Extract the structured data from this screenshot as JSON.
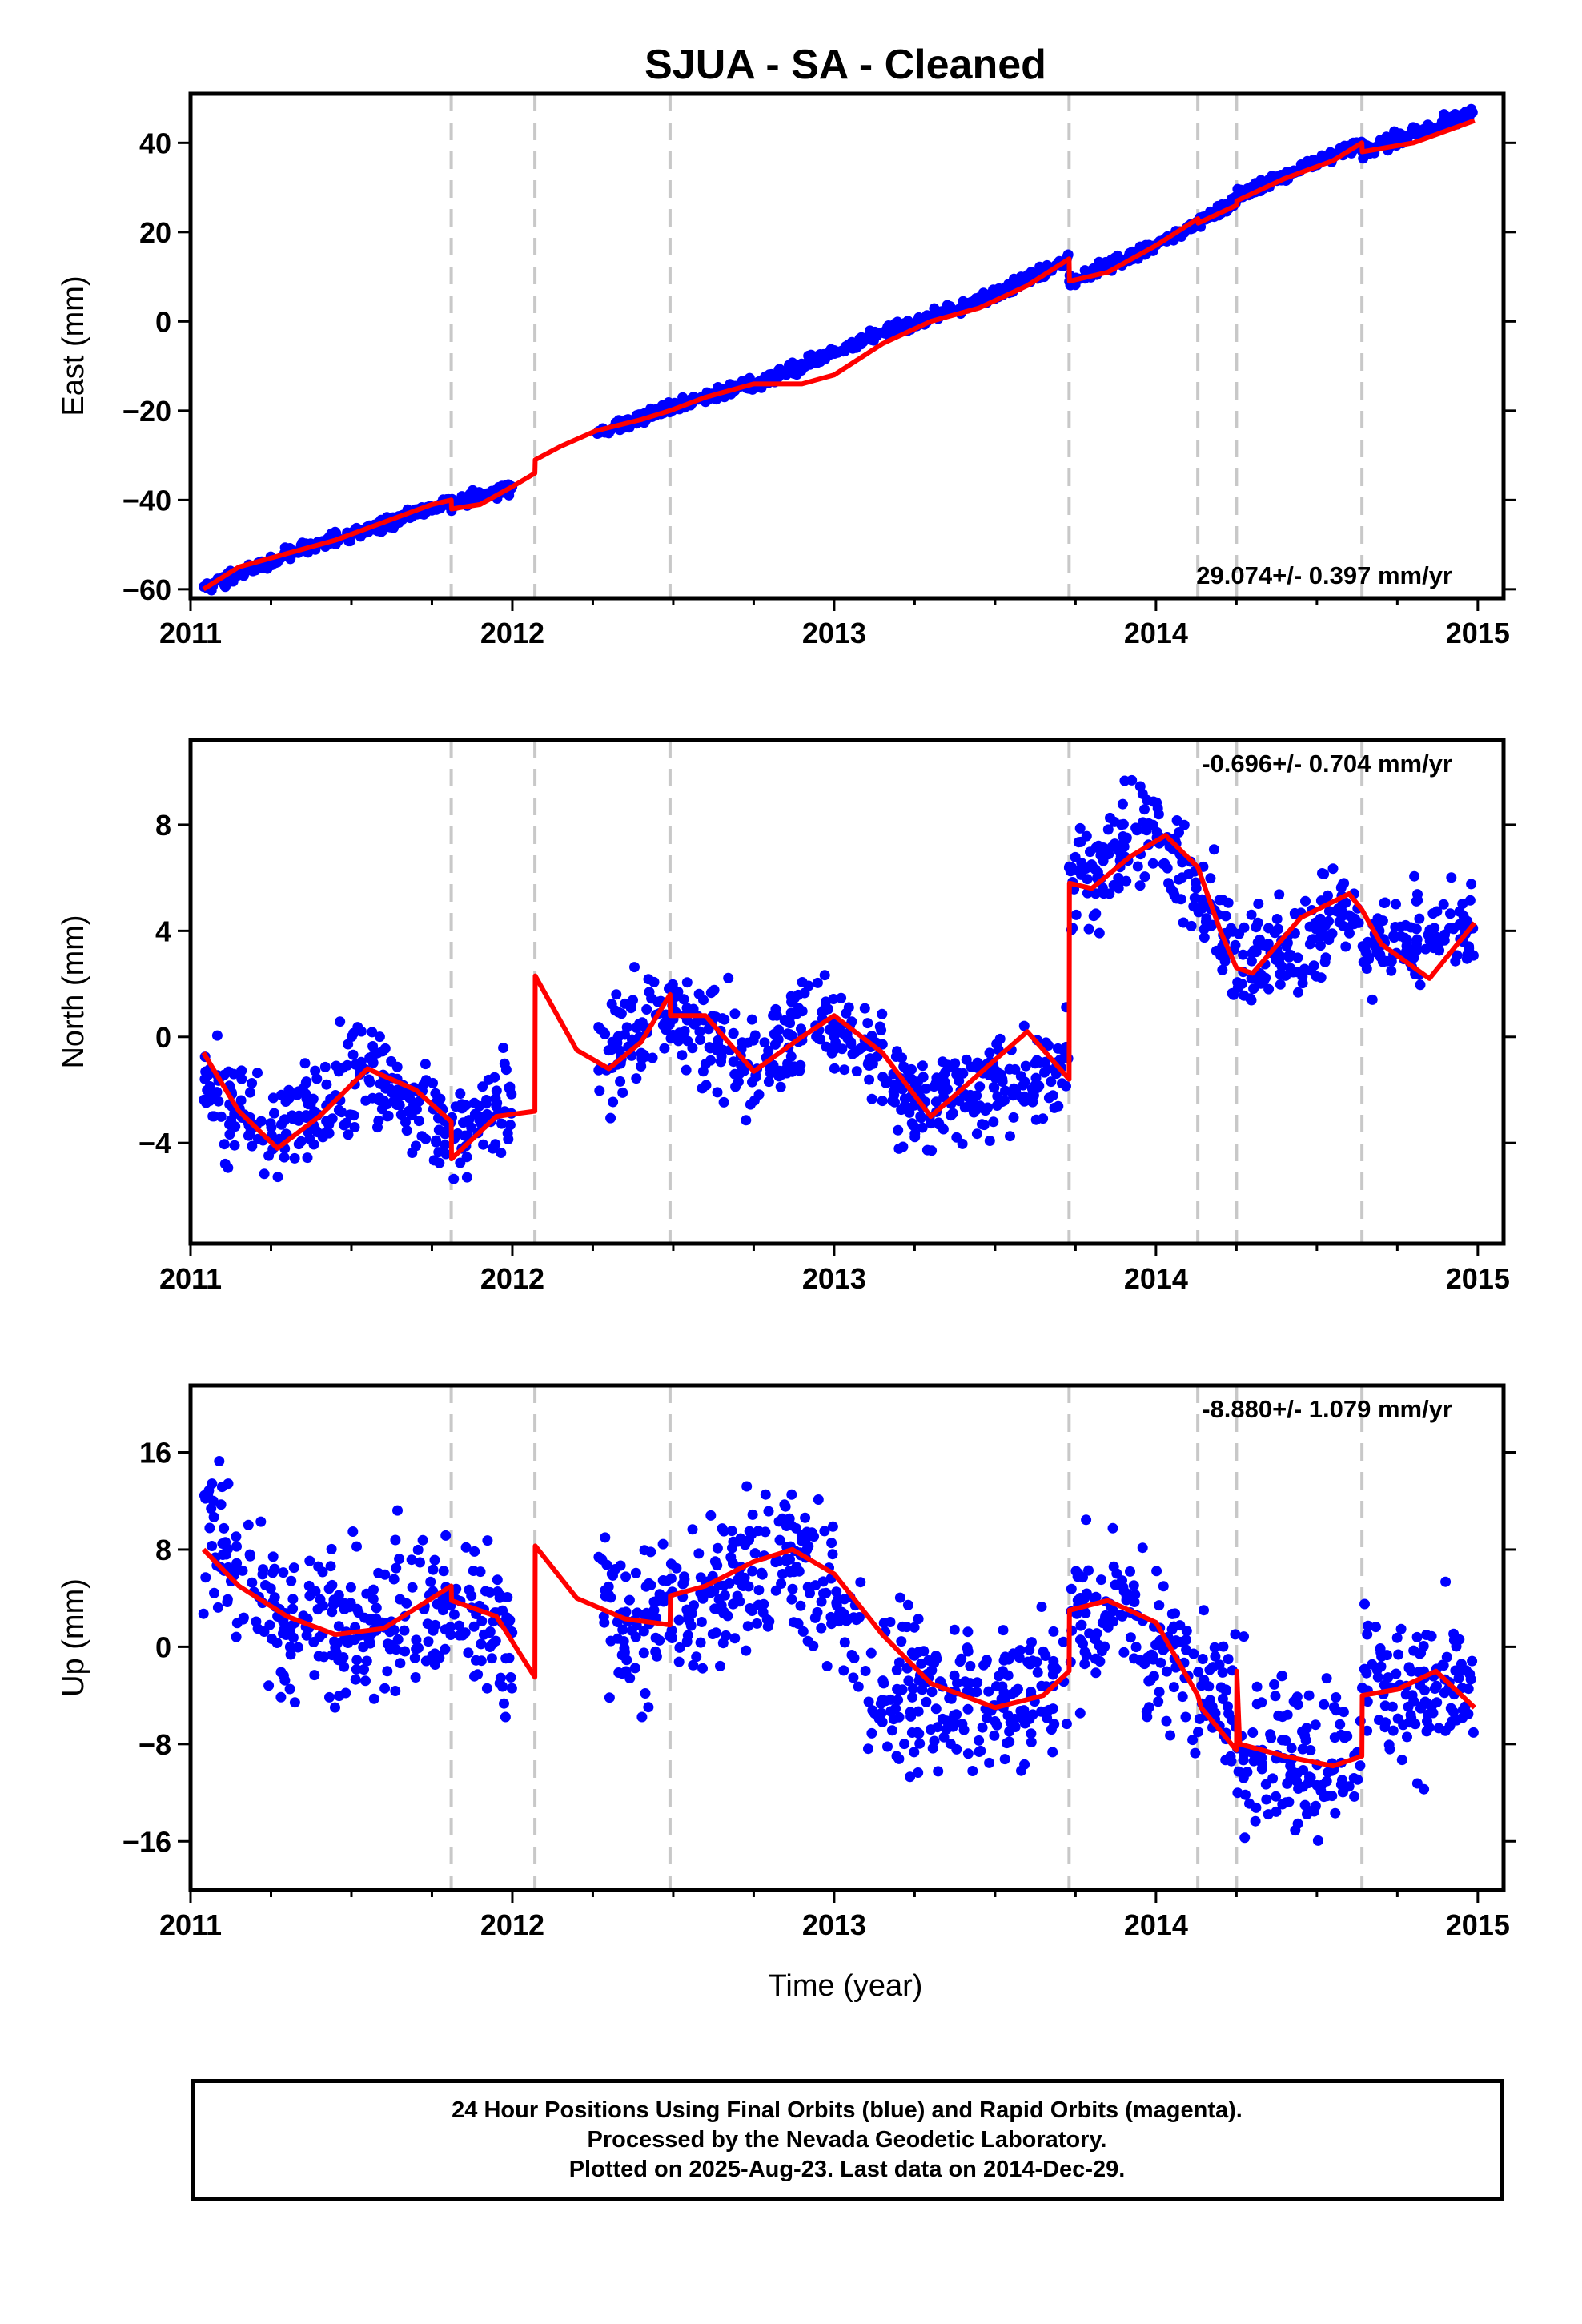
{
  "title": "SJUA  - SA - Cleaned",
  "xlabel": "Time (year)",
  "footer": {
    "line1": "24 Hour Positions Using Final Orbits (blue) and Rapid Orbits (magenta).",
    "line2": "Processed by the Nevada Geodetic Laboratory.",
    "line3": "Plotted on 2025-Aug-23. Last data on 2014-Dec-29."
  },
  "colors": {
    "data": "#0000ff",
    "model": "#ff0000",
    "offset_lines": "#c8c8c8",
    "frame": "#000000"
  },
  "chart_data": [
    {
      "type": "scatter",
      "component": "east",
      "ylabel": "East (mm)",
      "rate_label": "29.074+/- 0.397 mm/yr",
      "xlim": [
        2011.0,
        2015.08
      ],
      "ylim": [
        -62,
        51
      ],
      "xticks": [
        2011,
        2012,
        2013,
        2014,
        2015
      ],
      "yticks": [
        -60,
        -40,
        -20,
        0,
        20,
        40
      ],
      "offset_epochs": [
        2011.81,
        2012.07,
        2012.49,
        2013.73,
        2014.13,
        2014.25,
        2014.64
      ],
      "data_segments": [
        {
          "x": [
            2011.04,
            2011.3
          ],
          "y": [
            -60,
            -52
          ]
        },
        {
          "x": [
            2011.3,
            2011.62
          ],
          "y": [
            -52,
            -45
          ]
        },
        {
          "x": [
            2011.62,
            2011.81
          ],
          "y": [
            -45,
            -40
          ]
        },
        {
          "x": [
            2011.81,
            2012.0
          ],
          "y": [
            -41,
            -37
          ]
        },
        {
          "x": [
            2012.26,
            2012.5
          ],
          "y": [
            -25,
            -19
          ]
        },
        {
          "x": [
            2012.5,
            2012.8
          ],
          "y": [
            -19,
            -13
          ]
        },
        {
          "x": [
            2012.8,
            2013.1
          ],
          "y": [
            -13,
            -4
          ]
        },
        {
          "x": [
            2013.1,
            2013.5
          ],
          "y": [
            -4,
            6
          ]
        },
        {
          "x": [
            2013.5,
            2013.73
          ],
          "y": [
            6,
            14
          ]
        },
        {
          "x": [
            2013.73,
            2014.0
          ],
          "y": [
            9,
            17
          ]
        },
        {
          "x": [
            2014.0,
            2014.25
          ],
          "y": [
            17,
            27
          ]
        },
        {
          "x": [
            2014.25,
            2014.64
          ],
          "y": [
            28,
            40
          ]
        },
        {
          "x": [
            2014.64,
            2014.99
          ],
          "y": [
            38,
            47
          ]
        }
      ],
      "model": {
        "x": [
          2011.04,
          2011.15,
          2011.3,
          2011.45,
          2011.6,
          2011.75,
          2011.81,
          2011.811,
          2011.9,
          2012.0,
          2012.07,
          2012.071,
          2012.15,
          2012.26,
          2012.4,
          2012.49,
          2012.6,
          2012.75,
          2012.9,
          2013.0,
          2013.15,
          2013.3,
          2013.45,
          2013.6,
          2013.73,
          2013.731,
          2013.85,
          2014.0,
          2014.13,
          2014.131,
          2014.25,
          2014.251,
          2014.4,
          2014.55,
          2014.64,
          2014.641,
          2014.8,
          2014.99
        ],
        "y": [
          -60,
          -55,
          -52,
          -49,
          -45,
          -41,
          -40,
          -42,
          -41,
          -37,
          -34,
          -31,
          -28,
          -24.5,
          -22,
          -20,
          -17,
          -14,
          -14,
          -12,
          -5,
          0,
          3,
          8,
          14,
          9,
          11,
          17,
          23,
          22,
          26,
          27,
          32,
          36,
          40,
          38,
          40,
          45
        ]
      }
    },
    {
      "type": "scatter",
      "component": "north",
      "ylabel": "North (mm)",
      "rate_label": "-0.696+/- 0.704 mm/yr",
      "xlim": [
        2011.0,
        2015.08
      ],
      "ylim": [
        -7.8,
        11.2
      ],
      "xticks": [
        2011,
        2012,
        2013,
        2014,
        2015
      ],
      "yticks": [
        -4,
        0,
        4,
        8
      ],
      "offset_epochs": [
        2011.81,
        2012.07,
        2012.49,
        2013.73,
        2014.13,
        2014.25,
        2014.64
      ],
      "data_segments": [
        {
          "x": [
            2011.04,
            2011.3
          ],
          "y": [
            -2,
            -4
          ]
        },
        {
          "x": [
            2011.3,
            2011.55
          ],
          "y": [
            -3,
            -1
          ]
        },
        {
          "x": [
            2011.55,
            2011.81
          ],
          "y": [
            -1.5,
            -3.5
          ]
        },
        {
          "x": [
            2011.81,
            2012.0
          ],
          "y": [
            -4,
            -2.5
          ]
        },
        {
          "x": [
            2012.26,
            2012.5
          ],
          "y": [
            -1,
            1
          ]
        },
        {
          "x": [
            2012.5,
            2012.75
          ],
          "y": [
            0.8,
            -1
          ]
        },
        {
          "x": [
            2012.75,
            2013.0
          ],
          "y": [
            -1,
            1
          ]
        },
        {
          "x": [
            2013.0,
            2013.3
          ],
          "y": [
            0.5,
            -3
          ]
        },
        {
          "x": [
            2013.3,
            2013.73
          ],
          "y": [
            -2.5,
            -1
          ]
        },
        {
          "x": [
            2013.73,
            2014.0
          ],
          "y": [
            5.5,
            8
          ]
        },
        {
          "x": [
            2014.0,
            2014.25
          ],
          "y": [
            8,
            3
          ]
        },
        {
          "x": [
            2014.25,
            2014.64
          ],
          "y": [
            2.5,
            5
          ]
        },
        {
          "x": [
            2014.64,
            2014.99
          ],
          "y": [
            3.5,
            4
          ]
        }
      ],
      "model": {
        "x": [
          2011.04,
          2011.15,
          2011.27,
          2011.4,
          2011.55,
          2011.7,
          2011.81,
          2011.811,
          2011.95,
          2012.07,
          2012.071,
          2012.2,
          2012.3,
          2012.4,
          2012.49,
          2012.491,
          2012.6,
          2012.75,
          2012.9,
          2013.0,
          2013.15,
          2013.3,
          2013.45,
          2013.6,
          2013.73,
          2013.731,
          2013.8,
          2013.92,
          2014.03,
          2014.13,
          2014.2,
          2014.25,
          2014.3,
          2014.45,
          2014.6,
          2014.64,
          2014.7,
          2014.85,
          2014.99
        ],
        "y": [
          -0.6,
          -2.8,
          -4.2,
          -3.0,
          -1.2,
          -2.0,
          -3.2,
          -4.6,
          -3.0,
          -2.8,
          2.3,
          -0.5,
          -1.2,
          -0.2,
          1.6,
          0.8,
          0.8,
          -1.3,
          0.0,
          0.8,
          -0.6,
          -3.0,
          -1.4,
          0.2,
          -1.6,
          5.8,
          5.6,
          6.8,
          7.6,
          6.4,
          4.0,
          2.6,
          2.4,
          4.5,
          5.4,
          4.8,
          3.5,
          2.2,
          4.3
        ]
      }
    },
    {
      "type": "scatter",
      "component": "up",
      "ylabel": "Up (mm)",
      "rate_label": "-8.880+/- 1.079 mm/yr",
      "xlim": [
        2011.0,
        2015.08
      ],
      "ylim": [
        -20,
        21.5
      ],
      "xticks": [
        2011,
        2012,
        2013,
        2014,
        2015
      ],
      "yticks": [
        -16,
        -8,
        0,
        8,
        16
      ],
      "offset_epochs": [
        2011.81,
        2012.07,
        2012.49,
        2013.73,
        2014.13,
        2014.25,
        2014.64
      ],
      "data_segments": [
        {
          "x": [
            2011.04,
            2011.3
          ],
          "y": [
            9,
            2
          ]
        },
        {
          "x": [
            2011.3,
            2011.55
          ],
          "y": [
            2,
            1
          ]
        },
        {
          "x": [
            2011.55,
            2011.81
          ],
          "y": [
            1,
            4
          ]
        },
        {
          "x": [
            2011.81,
            2012.0
          ],
          "y": [
            4,
            1
          ]
        },
        {
          "x": [
            2012.26,
            2012.5
          ],
          "y": [
            3,
            2
          ]
        },
        {
          "x": [
            2012.5,
            2012.85
          ],
          "y": [
            3,
            8
          ]
        },
        {
          "x": [
            2012.85,
            2013.1
          ],
          "y": [
            8,
            0
          ]
        },
        {
          "x": [
            2013.1,
            2013.5
          ],
          "y": [
            -3,
            -5
          ]
        },
        {
          "x": [
            2013.5,
            2013.73
          ],
          "y": [
            -5,
            -2
          ]
        },
        {
          "x": [
            2013.73,
            2013.95
          ],
          "y": [
            3,
            3
          ]
        },
        {
          "x": [
            2013.95,
            2014.25
          ],
          "y": [
            2,
            -6
          ]
        },
        {
          "x": [
            2014.25,
            2014.64
          ],
          "y": [
            -8,
            -10
          ]
        },
        {
          "x": [
            2014.64,
            2014.99
          ],
          "y": [
            -4,
            -4
          ]
        }
      ],
      "model": {
        "x": [
          2011.04,
          2011.15,
          2011.3,
          2011.45,
          2011.6,
          2011.75,
          2011.81,
          2011.811,
          2011.95,
          2012.07,
          2012.071,
          2012.2,
          2012.35,
          2012.49,
          2012.491,
          2012.6,
          2012.75,
          2012.87,
          2013.0,
          2013.15,
          2013.3,
          2013.5,
          2013.65,
          2013.73,
          2013.731,
          2013.85,
          2014.0,
          2014.13,
          2014.14,
          2014.25,
          2014.251,
          2014.26,
          2014.4,
          2014.55,
          2014.64,
          2014.641,
          2014.75,
          2014.87,
          2014.99
        ],
        "y": [
          8,
          5,
          2.5,
          1,
          1.5,
          4,
          5,
          3.8,
          2.5,
          -2.5,
          8.3,
          4,
          2.3,
          1.8,
          4.2,
          5,
          7,
          8,
          6,
          1,
          -3,
          -5,
          -4,
          -2,
          3,
          3.8,
          2,
          -4,
          -5,
          -8.5,
          -2,
          -8,
          -9,
          -9.8,
          -9,
          -4,
          -3.5,
          -2,
          -5
        ]
      }
    }
  ]
}
